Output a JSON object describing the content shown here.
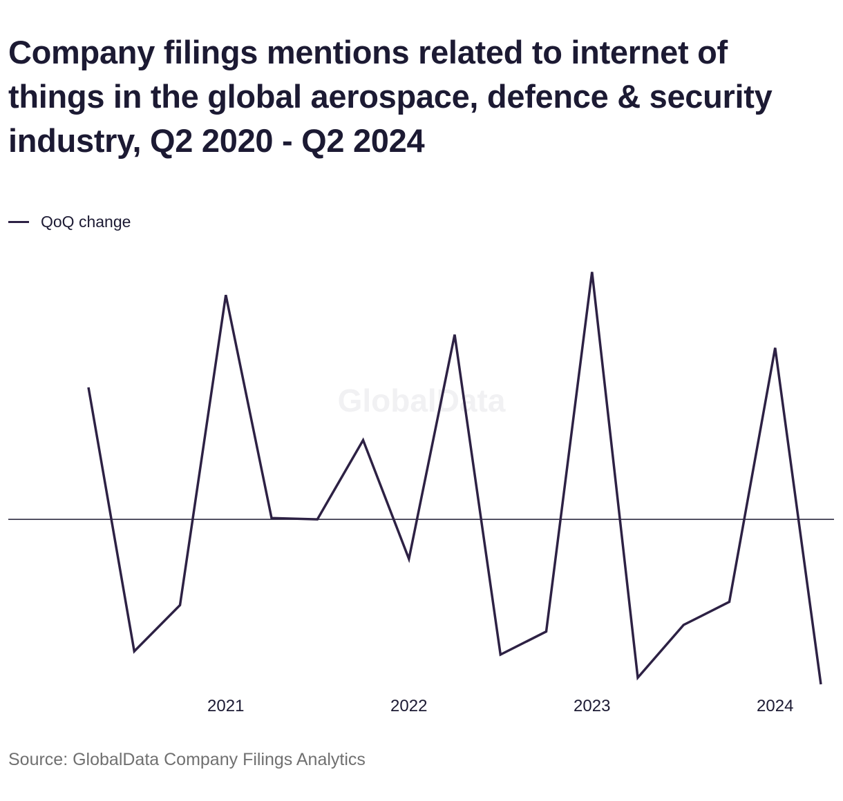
{
  "chart_data": {
    "type": "line",
    "title": "Company filings mentions related to internet of things in the global aerospace, defence & security industry, Q2 2020 - Q2 2024",
    "x": [
      "Q2 2020",
      "Q3 2020",
      "Q4 2020",
      "Q1 2021",
      "Q2 2021",
      "Q3 2021",
      "Q4 2021",
      "Q1 2022",
      "Q2 2022",
      "Q3 2022",
      "Q4 2022",
      "Q1 2023",
      "Q2 2023",
      "Q3 2023",
      "Q4 2023",
      "Q1 2024",
      "Q2 2024"
    ],
    "series": [
      {
        "name": "QoQ change",
        "color": "#2d2144",
        "values": [
          20,
          -20,
          -13,
          34,
          0.2,
          0,
          12,
          -6,
          28,
          -20.5,
          -17,
          37.5,
          -24,
          -16,
          -12.5,
          26,
          -25
        ]
      }
    ],
    "x_tick_labels": [
      "2021",
      "2022",
      "2023",
      "2024"
    ],
    "x_tick_positions": [
      "Q1 2021",
      "Q1 2022",
      "Q1 2023",
      "Q1 2024"
    ],
    "ylim": [
      -25,
      38
    ],
    "zero_line": true,
    "grid": false,
    "legend": "top-left",
    "watermark": "GlobalData"
  },
  "legend": {
    "label": "QoQ change"
  },
  "source": "Source: GlobalData Company Filings Analytics"
}
